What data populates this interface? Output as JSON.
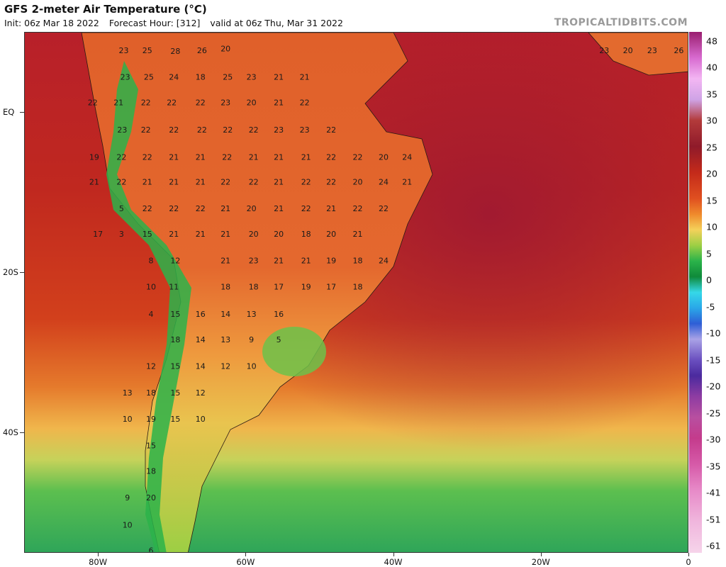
{
  "header": {
    "title": "GFS 2-meter Air Temperature (°C)",
    "init": "Init: 06z Mar 18 2022",
    "forecast_hour": "Forecast Hour: [312]",
    "valid": "valid at 06z Thu, Mar 31 2022",
    "brand": "TROPICALTIDBITS.COM"
  },
  "axes": {
    "lat_labels": [
      "EQ",
      "20S",
      "40S"
    ],
    "lon_labels": [
      "80W",
      "60W",
      "40W",
      "20W",
      "0"
    ]
  },
  "colorbar": {
    "labels": [
      "48",
      "40",
      "35",
      "30",
      "25",
      "20",
      "15",
      "10",
      "5",
      "0",
      "-5",
      "-10",
      "-15",
      "-20",
      "-25",
      "-30",
      "-35",
      "-41",
      "-51",
      "-61"
    ]
  },
  "chart_data": {
    "type": "map",
    "variable": "2-meter air temperature",
    "unit": "°C",
    "domain_lon": [
      -90,
      0
    ],
    "domain_lat": [
      -55,
      10
    ],
    "station_values": [
      {
        "lon": -76.6,
        "lat": 7.7,
        "value": 23
      },
      {
        "lon": -73.4,
        "lat": 7.7,
        "value": 25
      },
      {
        "lon": -69.6,
        "lat": 7.6,
        "value": 28
      },
      {
        "lon": -66.0,
        "lat": 7.7,
        "value": 26
      },
      {
        "lon": -62.8,
        "lat": 7.9,
        "value": 20
      },
      {
        "lon": -76.4,
        "lat": 4.4,
        "value": 23
      },
      {
        "lon": -73.2,
        "lat": 4.4,
        "value": 25
      },
      {
        "lon": -69.8,
        "lat": 4.4,
        "value": 24
      },
      {
        "lon": -66.2,
        "lat": 4.4,
        "value": 18
      },
      {
        "lon": -62.5,
        "lat": 4.4,
        "value": 25
      },
      {
        "lon": -59.3,
        "lat": 4.4,
        "value": 23
      },
      {
        "lon": -55.6,
        "lat": 4.4,
        "value": 21
      },
      {
        "lon": -52.1,
        "lat": 4.4,
        "value": 21
      },
      {
        "lon": -80.8,
        "lat": 1.2,
        "value": 22
      },
      {
        "lon": -77.3,
        "lat": 1.2,
        "value": 21
      },
      {
        "lon": -73.6,
        "lat": 1.2,
        "value": 22
      },
      {
        "lon": -70.1,
        "lat": 1.2,
        "value": 22
      },
      {
        "lon": -66.2,
        "lat": 1.2,
        "value": 22
      },
      {
        "lon": -62.8,
        "lat": 1.2,
        "value": 23
      },
      {
        "lon": -59.3,
        "lat": 1.2,
        "value": 20
      },
      {
        "lon": -55.6,
        "lat": 1.2,
        "value": 21
      },
      {
        "lon": -52.1,
        "lat": 1.2,
        "value": 22
      },
      {
        "lon": -76.8,
        "lat": -2.2,
        "value": 23
      },
      {
        "lon": -73.6,
        "lat": -2.2,
        "value": 22
      },
      {
        "lon": -69.8,
        "lat": -2.2,
        "value": 22
      },
      {
        "lon": -66.0,
        "lat": -2.2,
        "value": 22
      },
      {
        "lon": -62.5,
        "lat": -2.2,
        "value": 22
      },
      {
        "lon": -59.0,
        "lat": -2.2,
        "value": 22
      },
      {
        "lon": -55.6,
        "lat": -2.2,
        "value": 23
      },
      {
        "lon": -52.1,
        "lat": -2.2,
        "value": 23
      },
      {
        "lon": -48.5,
        "lat": -2.2,
        "value": 22
      },
      {
        "lon": -80.6,
        "lat": -5.6,
        "value": 19
      },
      {
        "lon": -76.9,
        "lat": -5.6,
        "value": 22
      },
      {
        "lon": -73.4,
        "lat": -5.6,
        "value": 22
      },
      {
        "lon": -69.8,
        "lat": -5.6,
        "value": 21
      },
      {
        "lon": -66.2,
        "lat": -5.6,
        "value": 21
      },
      {
        "lon": -62.6,
        "lat": -5.6,
        "value": 22
      },
      {
        "lon": -59.0,
        "lat": -5.6,
        "value": 21
      },
      {
        "lon": -55.6,
        "lat": -5.6,
        "value": 21
      },
      {
        "lon": -51.9,
        "lat": -5.6,
        "value": 21
      },
      {
        "lon": -48.5,
        "lat": -5.6,
        "value": 22
      },
      {
        "lon": -44.9,
        "lat": -5.6,
        "value": 22
      },
      {
        "lon": -41.4,
        "lat": -5.6,
        "value": 20
      },
      {
        "lon": -38.2,
        "lat": -5.6,
        "value": 24
      },
      {
        "lon": -80.6,
        "lat": -8.7,
        "value": 21
      },
      {
        "lon": -76.9,
        "lat": -8.7,
        "value": 22
      },
      {
        "lon": -73.4,
        "lat": -8.7,
        "value": 21
      },
      {
        "lon": -69.8,
        "lat": -8.7,
        "value": 21
      },
      {
        "lon": -66.2,
        "lat": -8.7,
        "value": 21
      },
      {
        "lon": -62.8,
        "lat": -8.7,
        "value": 22
      },
      {
        "lon": -59.0,
        "lat": -8.7,
        "value": 22
      },
      {
        "lon": -55.6,
        "lat": -8.7,
        "value": 21
      },
      {
        "lon": -51.9,
        "lat": -8.7,
        "value": 22
      },
      {
        "lon": -48.5,
        "lat": -8.7,
        "value": 22
      },
      {
        "lon": -44.9,
        "lat": -8.7,
        "value": 20
      },
      {
        "lon": -41.4,
        "lat": -8.7,
        "value": 24
      },
      {
        "lon": -38.2,
        "lat": -8.7,
        "value": 21
      },
      {
        "lon": -76.9,
        "lat": -12.0,
        "value": 5
      },
      {
        "lon": -73.4,
        "lat": -12.0,
        "value": 22
      },
      {
        "lon": -69.8,
        "lat": -12.0,
        "value": 22
      },
      {
        "lon": -66.2,
        "lat": -12.0,
        "value": 22
      },
      {
        "lon": -62.8,
        "lat": -12.0,
        "value": 21
      },
      {
        "lon": -59.3,
        "lat": -12.0,
        "value": 20
      },
      {
        "lon": -55.6,
        "lat": -12.0,
        "value": 21
      },
      {
        "lon": -51.9,
        "lat": -12.0,
        "value": 22
      },
      {
        "lon": -48.5,
        "lat": -12.0,
        "value": 21
      },
      {
        "lon": -44.9,
        "lat": -12.0,
        "value": 22
      },
      {
        "lon": -41.4,
        "lat": -12.0,
        "value": 22
      },
      {
        "lon": -80.1,
        "lat": -15.2,
        "value": 17
      },
      {
        "lon": -76.9,
        "lat": -15.2,
        "value": 3
      },
      {
        "lon": -73.4,
        "lat": -15.2,
        "value": 15
      },
      {
        "lon": -69.8,
        "lat": -15.2,
        "value": 21
      },
      {
        "lon": -66.2,
        "lat": -15.2,
        "value": 21
      },
      {
        "lon": -62.8,
        "lat": -15.2,
        "value": 21
      },
      {
        "lon": -59.0,
        "lat": -15.2,
        "value": 20
      },
      {
        "lon": -55.6,
        "lat": -15.2,
        "value": 20
      },
      {
        "lon": -51.9,
        "lat": -15.2,
        "value": 18
      },
      {
        "lon": -48.5,
        "lat": -15.2,
        "value": 20
      },
      {
        "lon": -44.9,
        "lat": -15.2,
        "value": 21
      },
      {
        "lon": -72.9,
        "lat": -18.5,
        "value": 8
      },
      {
        "lon": -69.6,
        "lat": -18.5,
        "value": 12
      },
      {
        "lon": -62.8,
        "lat": -18.5,
        "value": 21
      },
      {
        "lon": -59.0,
        "lat": -18.5,
        "value": 23
      },
      {
        "lon": -55.6,
        "lat": -18.5,
        "value": 21
      },
      {
        "lon": -51.9,
        "lat": -18.5,
        "value": 21
      },
      {
        "lon": -48.5,
        "lat": -18.5,
        "value": 19
      },
      {
        "lon": -44.9,
        "lat": -18.5,
        "value": 18
      },
      {
        "lon": -41.4,
        "lat": -18.5,
        "value": 24
      },
      {
        "lon": -72.9,
        "lat": -21.8,
        "value": 10
      },
      {
        "lon": -69.8,
        "lat": -21.8,
        "value": 11
      },
      {
        "lon": -62.8,
        "lat": -21.8,
        "value": 18
      },
      {
        "lon": -59.0,
        "lat": -21.8,
        "value": 18
      },
      {
        "lon": -55.6,
        "lat": -21.8,
        "value": 17
      },
      {
        "lon": -51.9,
        "lat": -21.8,
        "value": 19
      },
      {
        "lon": -48.5,
        "lat": -21.8,
        "value": 17
      },
      {
        "lon": -44.9,
        "lat": -21.8,
        "value": 18
      },
      {
        "lon": -72.9,
        "lat": -25.2,
        "value": 4
      },
      {
        "lon": -69.6,
        "lat": -25.2,
        "value": 15
      },
      {
        "lon": -66.2,
        "lat": -25.2,
        "value": 16
      },
      {
        "lon": -62.8,
        "lat": -25.2,
        "value": 14
      },
      {
        "lon": -59.3,
        "lat": -25.2,
        "value": 13
      },
      {
        "lon": -55.6,
        "lat": -25.2,
        "value": 16
      },
      {
        "lon": -69.6,
        "lat": -28.4,
        "value": 18
      },
      {
        "lon": -66.2,
        "lat": -28.4,
        "value": 14
      },
      {
        "lon": -62.8,
        "lat": -28.4,
        "value": 13
      },
      {
        "lon": -59.3,
        "lat": -28.4,
        "value": 9
      },
      {
        "lon": -55.6,
        "lat": -28.4,
        "value": 5
      },
      {
        "lon": -72.9,
        "lat": -31.7,
        "value": 12
      },
      {
        "lon": -69.6,
        "lat": -31.7,
        "value": 15
      },
      {
        "lon": -66.2,
        "lat": -31.7,
        "value": 14
      },
      {
        "lon": -62.8,
        "lat": -31.7,
        "value": 12
      },
      {
        "lon": -59.3,
        "lat": -31.7,
        "value": 10
      },
      {
        "lon": -76.1,
        "lat": -35.0,
        "value": 13
      },
      {
        "lon": -72.9,
        "lat": -35.0,
        "value": 18
      },
      {
        "lon": -69.6,
        "lat": -35.0,
        "value": 15
      },
      {
        "lon": -66.2,
        "lat": -35.0,
        "value": 12
      },
      {
        "lon": -76.1,
        "lat": -38.3,
        "value": 10
      },
      {
        "lon": -72.9,
        "lat": -38.3,
        "value": 19
      },
      {
        "lon": -69.6,
        "lat": -38.3,
        "value": 15
      },
      {
        "lon": -66.2,
        "lat": -38.3,
        "value": 10
      },
      {
        "lon": -72.9,
        "lat": -41.6,
        "value": 15
      },
      {
        "lon": -72.9,
        "lat": -44.8,
        "value": 18
      },
      {
        "lon": -76.1,
        "lat": -48.1,
        "value": 9
      },
      {
        "lon": -72.9,
        "lat": -48.1,
        "value": 20
      },
      {
        "lon": -76.1,
        "lat": -51.5,
        "value": 10
      },
      {
        "lon": -72.9,
        "lat": -54.7,
        "value": 6
      },
      {
        "lon": -11.5,
        "lat": 7.7,
        "value": 23
      },
      {
        "lon": -8.3,
        "lat": 7.7,
        "value": 20
      },
      {
        "lon": -5.0,
        "lat": 7.7,
        "value": 23
      },
      {
        "lon": -1.4,
        "lat": 7.7,
        "value": 26
      }
    ]
  }
}
